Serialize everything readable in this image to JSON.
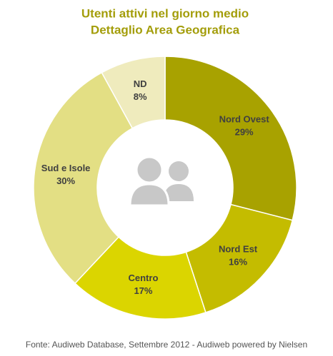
{
  "chart_data": {
    "type": "donut",
    "title": "Utenti attivi nel giorno medio",
    "subtitle": "Dettaglio Area Geografica",
    "categories": [
      "Nord Ovest",
      "Nord Est",
      "Centro",
      "Sud e Isole",
      "ND"
    ],
    "values": [
      29,
      16,
      17,
      30,
      8
    ],
    "value_labels": [
      "29%",
      "16%",
      "17%",
      "30%",
      "8%"
    ],
    "colors": [
      "#a8a200",
      "#c4bc00",
      "#dbd500",
      "#e3df84",
      "#efebbd"
    ],
    "source": "Fonte: Audiweb Database, Settembre 2012 - Audiweb powered  by Nielsen"
  }
}
